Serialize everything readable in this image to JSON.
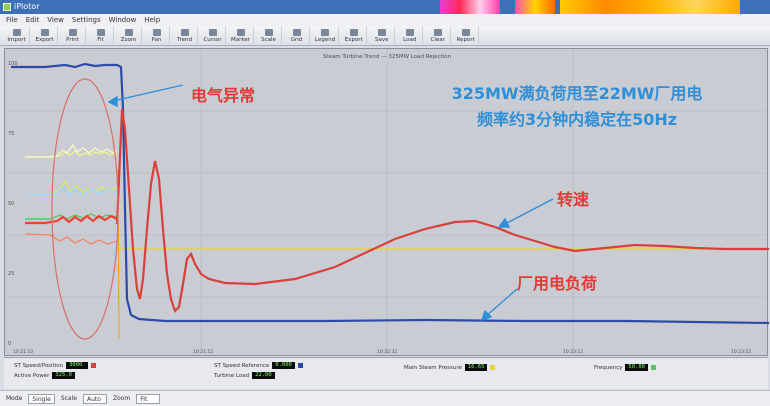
{
  "window": {
    "title": "iPlotor"
  },
  "menu": [
    "File",
    "Edit",
    "View",
    "Settings",
    "Window",
    "Help"
  ],
  "toolbar": [
    "Import",
    "Export",
    "Print",
    "Fit",
    "Zoom",
    "Pan",
    "Trend",
    "Cursor",
    "Marker",
    "Scale",
    "Grid",
    "Legend",
    "Export",
    "Save",
    "Load",
    "Clear",
    "Report"
  ],
  "plot": {
    "header": "Steam Turbine Trend — 325MW Load Rejection",
    "annotations": {
      "electrical_fault": "电气异常",
      "summary_line1": "325MW满负荷甩至22MW厂用电",
      "summary_line2": "频率约3分钟内稳定在50Hz",
      "speed": "转速",
      "house_load": "厂用电负荷"
    },
    "colors": {
      "background": "#c9ccd3",
      "speed": "#d9403a",
      "load": "#2c4aa8",
      "reference": "#e8d23a",
      "annotation_red": "#e23b36",
      "annotation_blue": "#2f8fd8"
    }
  },
  "chart_data": {
    "type": "line",
    "series": [
      {
        "key": "speed",
        "values": [
          0.58,
          0.58,
          0.58,
          0.6,
          0.62,
          0.64,
          0.64,
          0.66,
          0.66,
          0.64,
          0.62,
          0.62
        ]
      },
      {
        "key": "load",
        "values": [
          0.08,
          0.08,
          0.08,
          0.08,
          0.08,
          0.08,
          0.08,
          0.08,
          0.08,
          0.08,
          0.08,
          0.08
        ]
      }
    ]
  },
  "readouts": [
    {
      "label": "ST Speed/Position",
      "value": "3000"
    },
    {
      "label": "Active Power",
      "value": "325.0"
    },
    {
      "label": "ST Speed Reference",
      "value": "0.000"
    },
    {
      "label": "Turbine Load",
      "value": "22.00"
    },
    {
      "label": "Main Steam Pressure",
      "value": "16.65"
    },
    {
      "label": "Frequency",
      "value": "50.00"
    }
  ],
  "bottombar": {
    "mode_label": "Mode",
    "mode_value": "Single",
    "scale_label": "Scale",
    "scale_value": "Auto",
    "zoom_label": "Zoom",
    "zoom_value": "Fit"
  }
}
